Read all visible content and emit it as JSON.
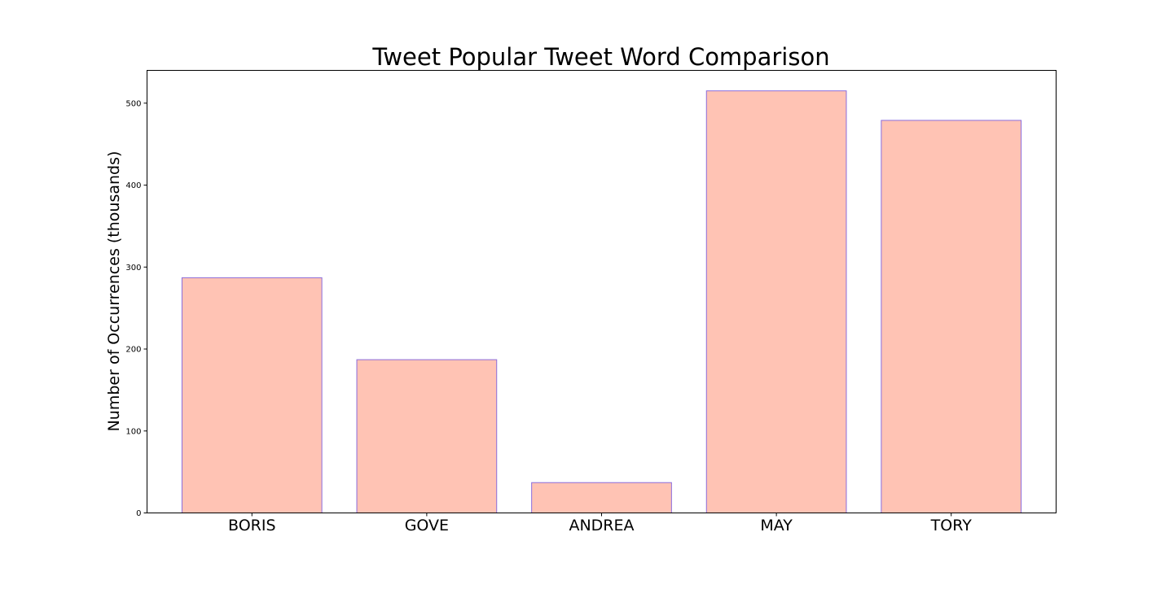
{
  "chart_data": {
    "type": "bar",
    "title": "Tweet Popular Tweet Word Comparison",
    "xlabel": "",
    "ylabel": "Number of Occurrences (thousands)",
    "categories": [
      "BORIS",
      "GOVE",
      "ANDREA",
      "MAY",
      "TORY"
    ],
    "values": [
      287,
      187,
      37,
      515,
      479
    ],
    "ylim": [
      0,
      540
    ],
    "yticks": [
      0,
      100,
      200,
      300,
      400,
      500
    ],
    "grid": false,
    "legend": "none",
    "colors": {
      "bar_fill": "#ffc3b4",
      "bar_edge": "#8a6cdc",
      "axes": "#000000"
    }
  }
}
